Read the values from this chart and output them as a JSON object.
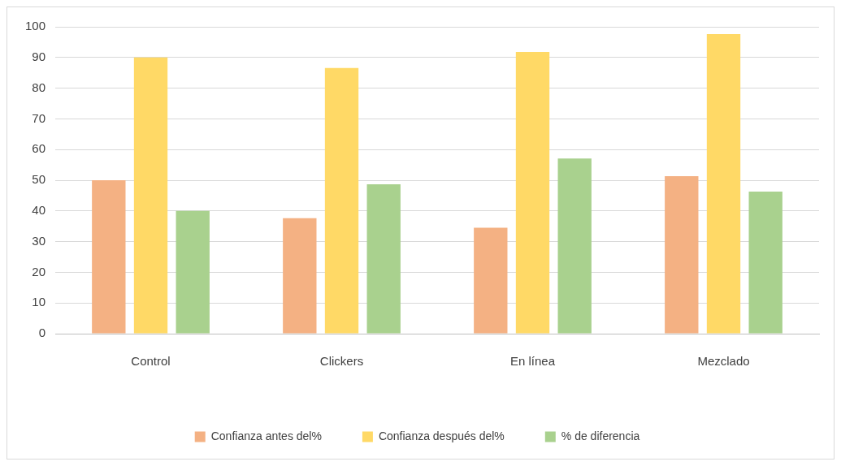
{
  "chart_data": {
    "type": "bar",
    "categories": [
      "Control",
      "Clickers",
      "En línea",
      "Mezclado"
    ],
    "series": [
      {
        "name": "Confianza antes del%",
        "color": "#f4b183",
        "values": [
          50,
          37.6,
          34.5,
          51.3
        ]
      },
      {
        "name": "Confianza después del%",
        "color": "#ffd966",
        "values": [
          90,
          86.6,
          91.8,
          97.6
        ]
      },
      {
        "name": "% de diferencia",
        "color": "#a9d18e",
        "values": [
          40,
          48.7,
          57.1,
          46.3
        ]
      }
    ],
    "ylim": [
      0,
      100
    ],
    "yticks": [
      0,
      10,
      20,
      30,
      40,
      50,
      60,
      70,
      80,
      90,
      100
    ],
    "grid": "y",
    "legend": "bottom"
  }
}
